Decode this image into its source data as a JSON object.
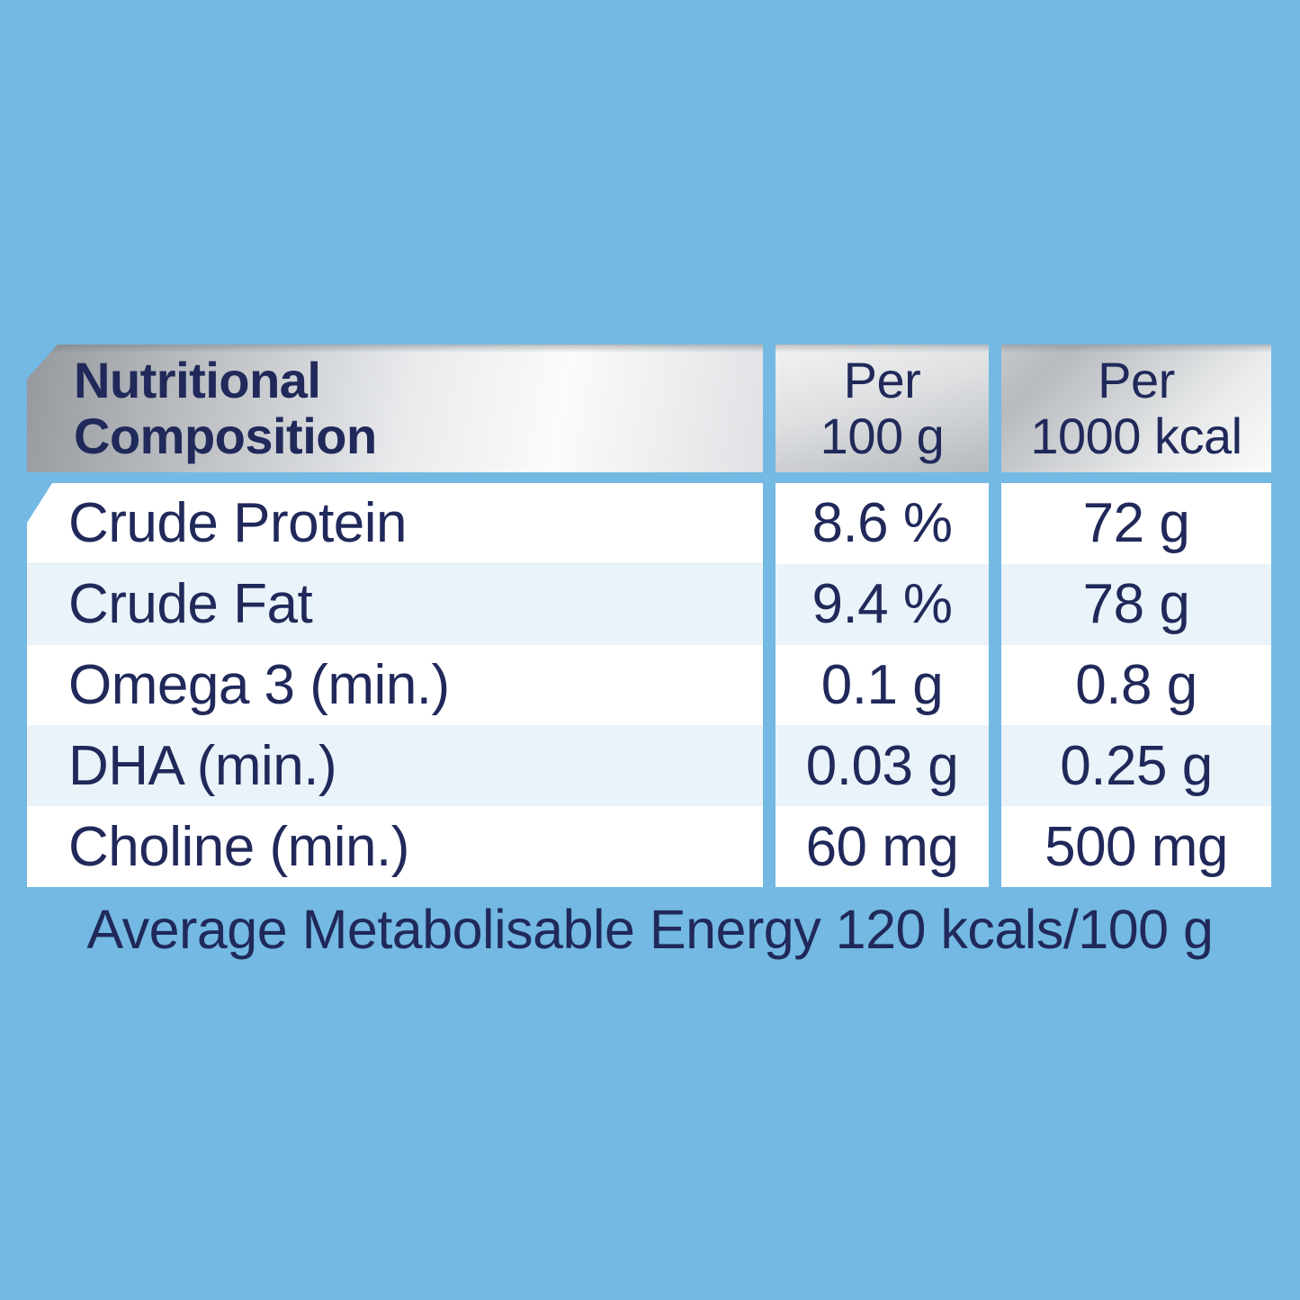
{
  "table": {
    "header": {
      "title_line1": "Nutritional",
      "title_line2": "Composition",
      "col2_line1": "Per",
      "col2_line2": "100 g",
      "col3_line1": "Per",
      "col3_line2": "1000 kcal"
    },
    "rows": [
      {
        "label": "Crude Protein",
        "per_100g": "8.6 %",
        "per_1000kcal": "72 g"
      },
      {
        "label": "Crude Fat",
        "per_100g": "9.4 %",
        "per_1000kcal": "78 g"
      },
      {
        "label": "Omega 3 (min.)",
        "per_100g": "0.1 g",
        "per_1000kcal": "0.8 g"
      },
      {
        "label": "DHA (min.)",
        "per_100g": "0.03 g",
        "per_1000kcal": "0.25 g"
      },
      {
        "label": "Choline (min.)",
        "per_100g": "60 mg",
        "per_1000kcal": "500 mg"
      }
    ]
  },
  "footer": {
    "energy_note": "Average Metabolisable Energy 120 kcals/100 g"
  },
  "colors": {
    "background_blue": "#73b9e3",
    "stripe_blue": "#eaf3f9",
    "text_navy": "#20295a",
    "header_silver_dark": "#95989d",
    "header_silver_light": "#fafbfb"
  }
}
